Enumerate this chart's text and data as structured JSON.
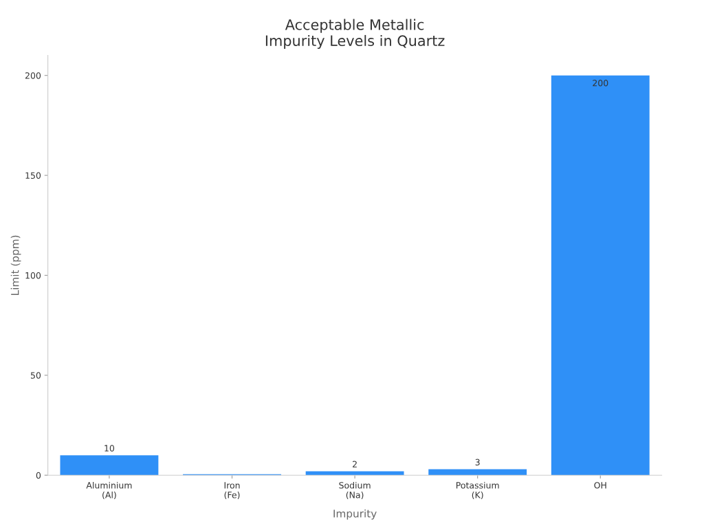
{
  "chart_data": {
    "type": "bar",
    "title": "Acceptable Metallic\nImpurity Levels in Quartz",
    "xlabel": "Impurity",
    "ylabel": "Limit (ppm)",
    "categories": [
      "Aluminium\n(Al)",
      "Iron\n(Fe)",
      "Sodium\n(Na)",
      "Potassium\n(K)",
      "OH"
    ],
    "values": [
      10,
      0.5,
      2,
      3,
      200
    ],
    "value_labels": [
      "10",
      null,
      "2",
      "3",
      "200"
    ],
    "color": "#2f90f7",
    "ylim": [
      0,
      210
    ],
    "yticks": [
      0,
      50,
      100,
      150,
      200
    ],
    "grid": false,
    "legend": false
  }
}
